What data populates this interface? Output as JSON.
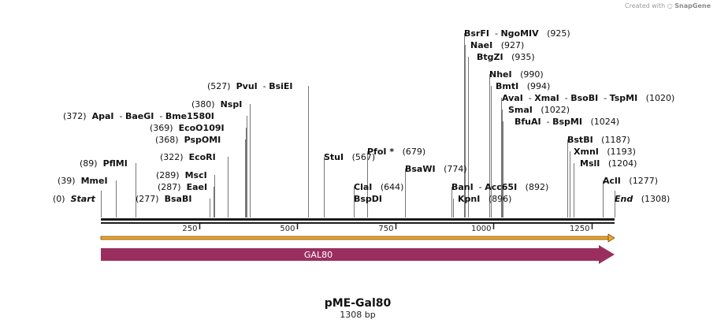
{
  "credit": {
    "prefix": "Created with",
    "brand": "SnapGene"
  },
  "plasmid": {
    "name": "pME-Gal80",
    "size_label": "1308 bp",
    "length_bp": 1308
  },
  "axis": {
    "ticks": [
      "250",
      "500",
      "750",
      "1000",
      "1250"
    ],
    "tick_positions": [
      250,
      500,
      750,
      1000,
      1250
    ]
  },
  "features": [
    {
      "label": "GAL80",
      "start": 0,
      "end": 1308,
      "direction": "forward",
      "color": "#9a2f5f"
    }
  ],
  "orf_color": "#f5a623",
  "sites": [
    {
      "pos_label": "(0)",
      "pos": 0,
      "names": [
        "Start"
      ],
      "italic": true
    },
    {
      "pos_label": "(39)",
      "pos": 39,
      "names": [
        "MmeI"
      ]
    },
    {
      "pos_label": "(89)",
      "pos": 89,
      "names": [
        "PflMI"
      ]
    },
    {
      "pos_label": "(277)",
      "pos": 277,
      "names": [
        "BsaBI"
      ]
    },
    {
      "pos_label": "(287)",
      "pos": 287,
      "names": [
        "EaeI"
      ]
    },
    {
      "pos_label": "(289)",
      "pos": 289,
      "names": [
        "MscI"
      ]
    },
    {
      "pos_label": "(322)",
      "pos": 322,
      "names": [
        "EcoRI"
      ]
    },
    {
      "pos_label": "(368)",
      "pos": 368,
      "names": [
        "PspOMI"
      ]
    },
    {
      "pos_label": "(369)",
      "pos": 369,
      "names": [
        "EcoO109I"
      ]
    },
    {
      "pos_label": "(372)",
      "pos": 372,
      "names": [
        "ApaI",
        "BaeGI",
        "Bme1580I"
      ]
    },
    {
      "pos_label": "(380)",
      "pos": 380,
      "names": [
        "NspI"
      ]
    },
    {
      "pos_label": "(527)",
      "pos": 527,
      "names": [
        "PvuI",
        "BsiEI"
      ]
    },
    {
      "pos_label": "(567)",
      "pos": 567,
      "names": [
        "StuI"
      ]
    },
    {
      "pos_label": "(644)",
      "pos": 644,
      "names": [
        "ClaI",
        "BspDI"
      ]
    },
    {
      "pos_label": "(679)",
      "pos": 679,
      "names": [
        "PfoI *"
      ]
    },
    {
      "pos_label": "(774)",
      "pos": 774,
      "names": [
        "BsaWI"
      ]
    },
    {
      "pos_label": "(892)",
      "pos": 892,
      "names": [
        "BanI",
        "Acc65I"
      ]
    },
    {
      "pos_label": "(896)",
      "pos": 896,
      "names": [
        "KpnI"
      ]
    },
    {
      "pos_label": "(925)",
      "pos": 925,
      "names": [
        "BsrFI",
        "NgoMIV"
      ]
    },
    {
      "pos_label": "(927)",
      "pos": 927,
      "names": [
        "NaeI"
      ]
    },
    {
      "pos_label": "(935)",
      "pos": 935,
      "names": [
        "BtgZI"
      ]
    },
    {
      "pos_label": "(990)",
      "pos": 990,
      "names": [
        "NheI"
      ]
    },
    {
      "pos_label": "(994)",
      "pos": 994,
      "names": [
        "BmtI"
      ]
    },
    {
      "pos_label": "(1020)",
      "pos": 1020,
      "names": [
        "AvaI",
        "XmaI",
        "BsoBI",
        "TspMI"
      ]
    },
    {
      "pos_label": "(1022)",
      "pos": 1022,
      "names": [
        "SmaI"
      ]
    },
    {
      "pos_label": "(1024)",
      "pos": 1024,
      "names": [
        "BfuAI",
        "BspMI"
      ]
    },
    {
      "pos_label": "(1187)",
      "pos": 1187,
      "names": [
        "BstBI"
      ]
    },
    {
      "pos_label": "(1193)",
      "pos": 1193,
      "names": [
        "XmnI"
      ]
    },
    {
      "pos_label": "(1204)",
      "pos": 1204,
      "names": [
        "MslI"
      ]
    },
    {
      "pos_label": "(1277)",
      "pos": 1277,
      "names": [
        "AclI"
      ]
    },
    {
      "pos_label": "(1308)",
      "pos": 1308,
      "names": [
        "End"
      ],
      "italic": true
    }
  ]
}
